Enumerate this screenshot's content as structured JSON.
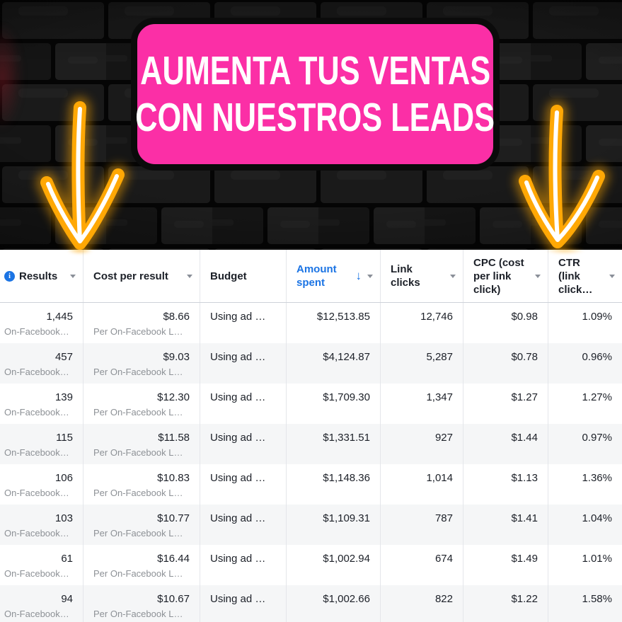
{
  "colors": {
    "banner_pink": "#fb2fa6",
    "banner_border": "#0b0b0b",
    "neon_orange": "#ffa805",
    "link_blue": "#1b74e4",
    "header_text": "#1c2028",
    "subtext_gray": "#8d9196",
    "zebra_gray": "#f5f6f7"
  },
  "icons": {
    "info": "i",
    "sort_descending": "↓",
    "caret_down": "▾",
    "down_arrow": "neon-down-arrow"
  },
  "hero": {
    "headline_line1": "AUMENTA TUS VENTAS",
    "headline_line2": "CON NUESTROS LEADS"
  },
  "table": {
    "columns": [
      {
        "id": "results",
        "label": "Results",
        "has_caret": true,
        "has_info_icon": true
      },
      {
        "id": "cost_per_result",
        "label": "Cost per result",
        "has_caret": true
      },
      {
        "id": "budget",
        "label": "Budget",
        "has_caret": false
      },
      {
        "id": "amount_spent",
        "label": "Amount\nspent",
        "has_caret": true,
        "sorted": "descending"
      },
      {
        "id": "link_clicks",
        "label": "Link\nclicks",
        "has_caret": true
      },
      {
        "id": "cpc",
        "label": "CPC (cost\nper link\nclick)",
        "has_caret": true
      },
      {
        "id": "ctr",
        "label": "CTR\n(link\nclick…",
        "has_caret": true
      }
    ],
    "rows": [
      {
        "results": "1,445",
        "results_sub": "On-Facebook…",
        "cost_per_result": "$8.66",
        "cost_sub": "Per On-Facebook L…",
        "budget": "Using ad …",
        "amount_spent": "$12,513.85",
        "link_clicks": "12,746",
        "cpc": "$0.98",
        "ctr": "1.09%"
      },
      {
        "results": "457",
        "results_sub": "On-Facebook…",
        "cost_per_result": "$9.03",
        "cost_sub": "Per On-Facebook L…",
        "budget": "Using ad …",
        "amount_spent": "$4,124.87",
        "link_clicks": "5,287",
        "cpc": "$0.78",
        "ctr": "0.96%"
      },
      {
        "results": "139",
        "results_sub": "On-Facebook…",
        "cost_per_result": "$12.30",
        "cost_sub": "Per On-Facebook L…",
        "budget": "Using ad …",
        "amount_spent": "$1,709.30",
        "link_clicks": "1,347",
        "cpc": "$1.27",
        "ctr": "1.27%"
      },
      {
        "results": "115",
        "results_sub": "On-Facebook…",
        "cost_per_result": "$11.58",
        "cost_sub": "Per On-Facebook L…",
        "budget": "Using ad …",
        "amount_spent": "$1,331.51",
        "link_clicks": "927",
        "cpc": "$1.44",
        "ctr": "0.97%"
      },
      {
        "results": "106",
        "results_sub": "On-Facebook…",
        "cost_per_result": "$10.83",
        "cost_sub": "Per On-Facebook L…",
        "budget": "Using ad …",
        "amount_spent": "$1,148.36",
        "link_clicks": "1,014",
        "cpc": "$1.13",
        "ctr": "1.36%"
      },
      {
        "results": "103",
        "results_sub": "On-Facebook…",
        "cost_per_result": "$10.77",
        "cost_sub": "Per On-Facebook L…",
        "budget": "Using ad …",
        "amount_spent": "$1,109.31",
        "link_clicks": "787",
        "cpc": "$1.41",
        "ctr": "1.04%"
      },
      {
        "results": "61",
        "results_sub": "On-Facebook…",
        "cost_per_result": "$16.44",
        "cost_sub": "Per On-Facebook L…",
        "budget": "Using ad …",
        "amount_spent": "$1,002.94",
        "link_clicks": "674",
        "cpc": "$1.49",
        "ctr": "1.01%"
      },
      {
        "results": "94",
        "results_sub": "On-Facebook…",
        "cost_per_result": "$10.67",
        "cost_sub": "Per On-Facebook L…",
        "budget": "Using ad …",
        "amount_spent": "$1,002.66",
        "link_clicks": "822",
        "cpc": "$1.22",
        "ctr": "1.58%"
      }
    ]
  }
}
